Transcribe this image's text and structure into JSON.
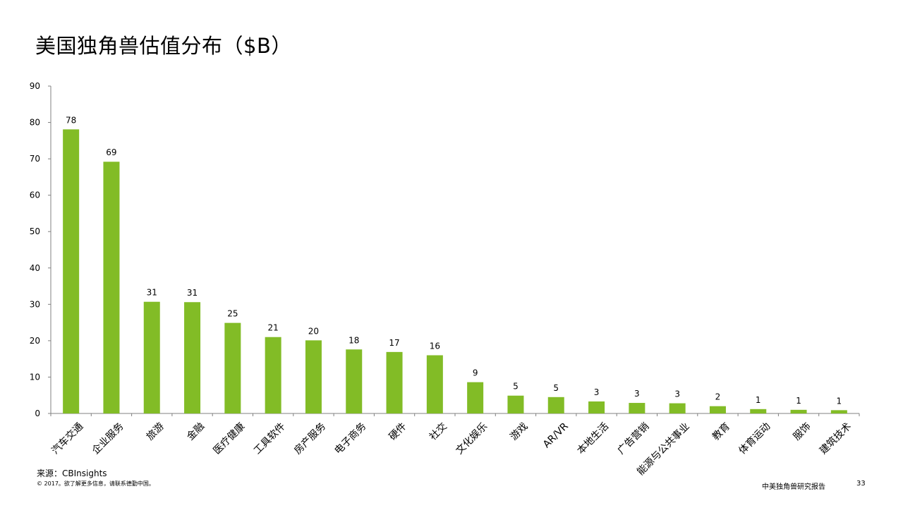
{
  "slide": {
    "title": "美国独角兽估值分布（$B）",
    "source": "来源：CBInsights",
    "copyright": "© 2017。欲了解更多信息，请联系德勤中国。",
    "report_name": "中美独角兽研究报告",
    "page_number": "33"
  },
  "colors": {
    "bar": "#82BC26",
    "axis": "#808080"
  },
  "chart_data": {
    "type": "bar",
    "title": "美国独角兽估值分布（$B）",
    "xlabel": "",
    "ylabel": "",
    "ylim": [
      0,
      90
    ],
    "yticks": [
      0,
      10,
      20,
      30,
      40,
      50,
      60,
      70,
      80,
      90
    ],
    "grid": false,
    "legend": "none",
    "categories": [
      "汽车交通",
      "企业服务",
      "旅游",
      "金融",
      "医疗健康",
      "工具软件",
      "房产服务",
      "电子商务",
      "硬件",
      "社交",
      "文化娱乐",
      "游戏",
      "AR/VR",
      "本地生活",
      "广告营销",
      "能源与公共事业",
      "教育",
      "体育运动",
      "服饰",
      "建筑技术"
    ],
    "values": [
      78.1,
      69.2,
      30.7,
      30.6,
      24.9,
      21.0,
      20.1,
      17.6,
      16.9,
      16.0,
      8.6,
      4.9,
      4.5,
      3.3,
      2.9,
      2.8,
      2.0,
      1.2,
      1.0,
      0.9
    ],
    "data_labels": [
      "78",
      "69",
      "31",
      "31",
      "25",
      "21",
      "20",
      "18",
      "17",
      "16",
      "9",
      "5",
      "5",
      "3",
      "3",
      "3",
      "2",
      "1",
      "1",
      "1"
    ]
  }
}
